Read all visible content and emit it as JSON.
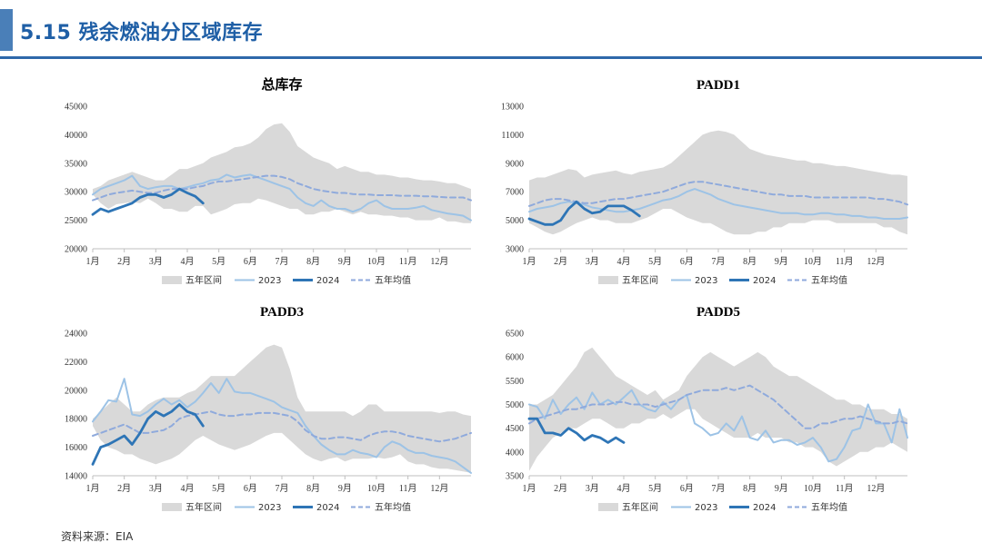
{
  "header": {
    "title": "5.15 残余燃油分区域库存"
  },
  "legend_labels": [
    "五年区间",
    "2023",
    "2024",
    "五年均值"
  ],
  "colors": {
    "band": "#d9d9d9",
    "y2023": "#9dc3e6",
    "y2024": "#2e75b6",
    "avg": "#8faadc",
    "header": "#1f5fa6"
  },
  "source": "资料来源：EIA",
  "chart_data": [
    {
      "type": "line",
      "title": "总库存",
      "ylim": [
        20000,
        45000
      ],
      "yticks": [
        20000,
        25000,
        30000,
        35000,
        40000,
        45000
      ],
      "months": [
        "1月",
        "2月",
        "3月",
        "4月",
        "5月",
        "6月",
        "7月",
        "8月",
        "9月",
        "10月",
        "11月",
        "12月"
      ],
      "band_min": [
        29500,
        28000,
        27000,
        27800,
        28000,
        28200,
        28000,
        28800,
        28000,
        27000,
        27000,
        26500,
        26500,
        27500,
        27500,
        26000,
        26500,
        27000,
        27800,
        28000,
        28000,
        28800,
        28500,
        28000,
        27500,
        27000,
        27000,
        26000,
        26000,
        26500,
        26500,
        27000,
        26500,
        26000,
        26500,
        26000,
        26000,
        25800,
        25800,
        25500,
        25500,
        25000,
        25000,
        25000,
        25500,
        24800,
        24800,
        24500,
        24500
      ],
      "band_max": [
        30500,
        31000,
        32000,
        32500,
        33000,
        33500,
        33000,
        32500,
        32000,
        32000,
        33000,
        34000,
        34000,
        34500,
        35000,
        36000,
        36500,
        37000,
        37800,
        38000,
        38500,
        39500,
        41000,
        41800,
        42000,
        40500,
        38000,
        37000,
        36000,
        35500,
        35000,
        34000,
        34500,
        34000,
        33500,
        33500,
        33000,
        33000,
        32800,
        32500,
        32500,
        32200,
        32000,
        32000,
        31800,
        31500,
        31500,
        31000,
        30500
      ],
      "y2023": [
        29500,
        30500,
        31000,
        31500,
        32000,
        32800,
        31000,
        30500,
        30800,
        31000,
        31000,
        30500,
        30800,
        31200,
        31500,
        32000,
        32200,
        33000,
        32500,
        32800,
        33000,
        32500,
        32000,
        31500,
        31000,
        30500,
        29000,
        28000,
        27500,
        28500,
        27500,
        27000,
        27000,
        26500,
        27000,
        28000,
        28500,
        27500,
        27000,
        27000,
        27000,
        27200,
        27500,
        26800,
        26500,
        26200,
        26000,
        25800,
        25000
      ],
      "y2024": [
        26000,
        27000,
        26500,
        27000,
        27500,
        28000,
        29000,
        29500,
        29500,
        29000,
        29500,
        30500,
        29800,
        29200,
        28000
      ],
      "avg": [
        28500,
        29000,
        29500,
        29800,
        30000,
        30200,
        30000,
        29800,
        29800,
        30200,
        30500,
        30500,
        30500,
        30800,
        31000,
        31500,
        31800,
        31800,
        32000,
        32200,
        32400,
        32600,
        32800,
        32800,
        32600,
        32200,
        31500,
        31000,
        30500,
        30200,
        30000,
        29800,
        29800,
        29600,
        29500,
        29500,
        29400,
        29400,
        29400,
        29300,
        29300,
        29300,
        29200,
        29200,
        29100,
        29000,
        29000,
        29000,
        28500
      ]
    },
    {
      "type": "line",
      "title": "PADD1",
      "ylim": [
        3000,
        13000
      ],
      "yticks": [
        3000,
        5000,
        7000,
        9000,
        11000,
        13000
      ],
      "months": [
        "1月",
        "2月",
        "3月",
        "4月",
        "5月",
        "6月",
        "7月",
        "8月",
        "9月",
        "10月",
        "11月",
        "12月"
      ],
      "band_min": [
        4800,
        4500,
        4200,
        4000,
        4200,
        4500,
        4800,
        5000,
        5200,
        5000,
        5000,
        4800,
        4800,
        4800,
        5000,
        5200,
        5500,
        5800,
        5800,
        5500,
        5200,
        5000,
        4800,
        4800,
        4500,
        4200,
        4000,
        4000,
        4000,
        4200,
        4200,
        4500,
        4500,
        4800,
        4800,
        4800,
        5000,
        5000,
        5000,
        4800,
        4800,
        4800,
        4800,
        4800,
        4800,
        4500,
        4500,
        4200,
        4000
      ],
      "band_max": [
        7800,
        8000,
        8000,
        8200,
        8400,
        8600,
        8500,
        8000,
        8200,
        8300,
        8400,
        8500,
        8300,
        8200,
        8400,
        8500,
        8600,
        8700,
        9000,
        9500,
        10000,
        10500,
        11000,
        11200,
        11300,
        11200,
        11000,
        10500,
        10000,
        9800,
        9600,
        9500,
        9400,
        9300,
        9200,
        9200,
        9000,
        9000,
        8900,
        8800,
        8800,
        8700,
        8600,
        8500,
        8400,
        8300,
        8200,
        8200,
        8100
      ],
      "y2023": [
        5600,
        5800,
        5900,
        6000,
        6200,
        6300,
        6200,
        6100,
        5900,
        5800,
        5700,
        5600,
        5600,
        5700,
        5800,
        6000,
        6200,
        6400,
        6500,
        6700,
        7000,
        7200,
        7000,
        6800,
        6500,
        6300,
        6100,
        6000,
        5900,
        5800,
        5700,
        5600,
        5500,
        5500,
        5500,
        5400,
        5400,
        5500,
        5500,
        5400,
        5400,
        5300,
        5300,
        5200,
        5200,
        5100,
        5100,
        5100,
        5200
      ],
      "y2024": [
        5100,
        4900,
        4700,
        4700,
        5000,
        5800,
        6300,
        5800,
        5500,
        5600,
        6000,
        6000,
        6000,
        5700,
        5300
      ],
      "avg": [
        6000,
        6200,
        6400,
        6500,
        6500,
        6400,
        6300,
        6200,
        6200,
        6300,
        6400,
        6500,
        6500,
        6600,
        6700,
        6800,
        6900,
        7000,
        7200,
        7400,
        7600,
        7700,
        7700,
        7600,
        7500,
        7400,
        7300,
        7200,
        7100,
        7000,
        6900,
        6800,
        6800,
        6700,
        6700,
        6700,
        6600,
        6600,
        6600,
        6600,
        6600,
        6600,
        6600,
        6600,
        6500,
        6500,
        6400,
        6300,
        6100
      ]
    },
    {
      "type": "line",
      "title": "PADD3",
      "ylim": [
        14000,
        24000
      ],
      "yticks": [
        14000,
        16000,
        18000,
        20000,
        22000,
        24000
      ],
      "months": [
        "1月",
        "2月",
        "3月",
        "4月",
        "5月",
        "6月",
        "7月",
        "8月",
        "9月",
        "10月",
        "11月",
        "12月"
      ],
      "band_min": [
        17500,
        16500,
        16000,
        15800,
        15500,
        15500,
        15200,
        15000,
        14800,
        15000,
        15200,
        15500,
        16000,
        16500,
        16800,
        16500,
        16200,
        16000,
        15800,
        16000,
        16200,
        16500,
        16800,
        17000,
        17000,
        16500,
        16000,
        15500,
        15200,
        15000,
        15200,
        15300,
        15000,
        15200,
        15200,
        15200,
        15300,
        15200,
        15300,
        15500,
        15000,
        14800,
        14800,
        14600,
        14500,
        14500,
        14400,
        14300,
        14200
      ],
      "band_max": [
        18000,
        18500,
        19000,
        19500,
        19000,
        18500,
        18500,
        19000,
        19300,
        19500,
        19500,
        19500,
        19800,
        20000,
        20500,
        21000,
        21000,
        21000,
        21000,
        21500,
        22000,
        22500,
        23000,
        23200,
        23000,
        21500,
        19500,
        18500,
        18500,
        18500,
        18500,
        18500,
        18500,
        18200,
        18500,
        19000,
        19000,
        18500,
        18500,
        18500,
        18500,
        18500,
        18500,
        18500,
        18400,
        18500,
        18500,
        18300,
        18200
      ],
      "y2023": [
        17800,
        18500,
        19300,
        19200,
        20800,
        18300,
        18200,
        18500,
        19000,
        19400,
        19000,
        19300,
        18800,
        19200,
        19800,
        20500,
        19800,
        20800,
        19900,
        19800,
        19800,
        19600,
        19400,
        19200,
        18800,
        18600,
        18400,
        17500,
        16800,
        16200,
        15800,
        15500,
        15500,
        15800,
        15600,
        15500,
        15300,
        16000,
        16400,
        16200,
        15800,
        15600,
        15600,
        15400,
        15300,
        15200,
        15000,
        14600,
        14200
      ],
      "y2024": [
        14800,
        16000,
        16200,
        16500,
        16800,
        16200,
        17000,
        18000,
        18500,
        18200,
        18500,
        19000,
        18500,
        18300,
        17500
      ],
      "avg": [
        16800,
        17000,
        17200,
        17400,
        17600,
        17300,
        17000,
        17000,
        17100,
        17200,
        17500,
        18000,
        18200,
        18300,
        18400,
        18500,
        18300,
        18200,
        18200,
        18300,
        18300,
        18400,
        18400,
        18400,
        18300,
        18200,
        17800,
        17200,
        16800,
        16600,
        16600,
        16700,
        16700,
        16600,
        16500,
        16800,
        17000,
        17100,
        17100,
        17000,
        16800,
        16700,
        16600,
        16500,
        16400,
        16500,
        16600,
        16800,
        17000
      ]
    },
    {
      "type": "line",
      "title": "PADD5",
      "ylim": [
        3500,
        6500
      ],
      "yticks": [
        3500,
        4000,
        4500,
        5000,
        5500,
        6000,
        6500
      ],
      "months": [
        "1月",
        "2月",
        "3月",
        "4月",
        "5月",
        "6月",
        "7月",
        "8月",
        "9月",
        "10月",
        "11月",
        "12月"
      ],
      "band_min": [
        3600,
        3900,
        4100,
        4300,
        4400,
        4500,
        4500,
        4600,
        4700,
        4700,
        4600,
        4500,
        4500,
        4600,
        4600,
        4700,
        4700,
        4800,
        4700,
        4800,
        4900,
        4900,
        4700,
        4600,
        4500,
        4400,
        4300,
        4300,
        4300,
        4400,
        4300,
        4300,
        4300,
        4200,
        4200,
        4100,
        4100,
        4000,
        3800,
        3700,
        3800,
        3900,
        4000,
        4000,
        4100,
        4100,
        4200,
        4100,
        4000
      ],
      "band_max": [
        5000,
        5000,
        5100,
        5200,
        5400,
        5600,
        5800,
        6100,
        6200,
        6000,
        5800,
        5600,
        5500,
        5400,
        5300,
        5200,
        5300,
        5100,
        5200,
        5300,
        5600,
        5800,
        6000,
        6100,
        6000,
        5900,
        5800,
        5900,
        6000,
        6100,
        6000,
        5800,
        5700,
        5600,
        5600,
        5500,
        5400,
        5300,
        5200,
        5100,
        5100,
        5000,
        5000,
        4900,
        4900,
        4900,
        4800,
        4800,
        4700
      ],
      "y2023": [
        5000,
        4950,
        4700,
        5100,
        4800,
        5000,
        5150,
        4900,
        5250,
        5000,
        5100,
        5000,
        5150,
        5300,
        5000,
        4900,
        4850,
        5050,
        4900,
        5100,
        5200,
        4600,
        4500,
        4350,
        4400,
        4600,
        4450,
        4750,
        4300,
        4250,
        4450,
        4200,
        4250,
        4250,
        4150,
        4200,
        4300,
        4100,
        3800,
        3850,
        4100,
        4450,
        4500,
        5000,
        4600,
        4600,
        4200,
        4900,
        4300
      ],
      "y2024": [
        4700,
        4700,
        4400,
        4400,
        4350,
        4500,
        4400,
        4250,
        4350,
        4300,
        4200,
        4300,
        4200
      ],
      "avg": [
        4600,
        4700,
        4750,
        4800,
        4850,
        4900,
        4900,
        4950,
        5000,
        5000,
        5000,
        5050,
        5050,
        5000,
        5000,
        5000,
        4950,
        5000,
        5050,
        5100,
        5200,
        5250,
        5300,
        5300,
        5300,
        5350,
        5300,
        5350,
        5400,
        5300,
        5200,
        5100,
        4950,
        4800,
        4650,
        4500,
        4500,
        4600,
        4600,
        4650,
        4700,
        4700,
        4750,
        4700,
        4650,
        4600,
        4600,
        4650,
        4600
      ]
    }
  ]
}
